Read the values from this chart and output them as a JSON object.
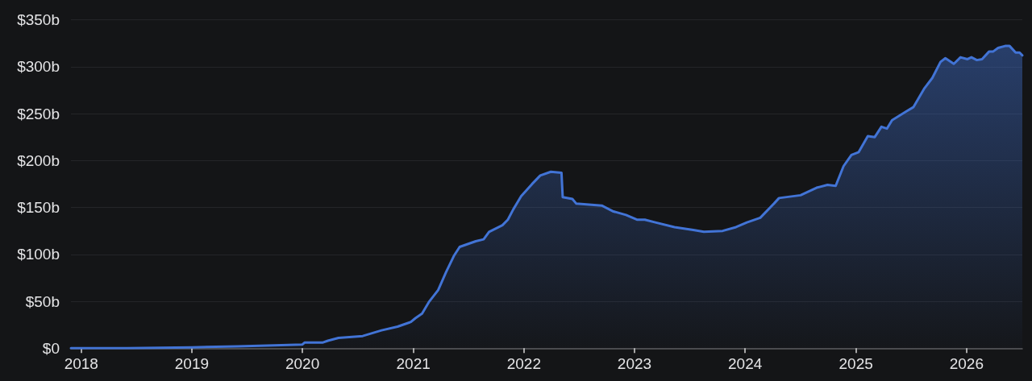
{
  "chart_data": {
    "type": "area",
    "x": [
      "2017-11-28",
      "2018-06-01",
      "2019-01-01",
      "2019-06-01",
      "2019-10-01",
      "2020-01-01",
      "2020-01-08",
      "2020-03-07",
      "2020-03-25",
      "2020-04-29",
      "2020-07-18",
      "2020-09-18",
      "2020-11-10",
      "2020-12-24",
      "2021-01-08",
      "2021-01-30",
      "2021-02-21",
      "2021-03-24",
      "2021-04-19",
      "2021-05-16",
      "2021-06-03",
      "2021-07-26",
      "2021-08-21",
      "2021-09-08",
      "2021-10-22",
      "2021-11-09",
      "2021-11-27",
      "2021-12-23",
      "2022-01-28",
      "2022-02-24",
      "2022-03-31",
      "2022-05-05",
      "2022-05-09",
      "2022-06-10",
      "2022-06-23",
      "2022-09-15",
      "2022-10-21",
      "2022-12-04",
      "2023-01-09",
      "2023-02-04",
      "2023-03-11",
      "2023-05-13",
      "2023-07-14",
      "2023-08-18",
      "2023-10-19",
      "2023-12-02",
      "2024-01-07",
      "2024-02-20",
      "2024-04-05",
      "2024-04-22",
      "2024-07-02",
      "2024-08-24",
      "2024-09-29",
      "2024-10-26",
      "2024-11-21",
      "2024-12-17",
      "2025-01-10",
      "2025-02-09",
      "2025-03-04",
      "2025-03-26",
      "2025-04-13",
      "2025-04-30",
      "2025-06-14",
      "2025-07-10",
      "2025-08-15",
      "2025-09-10",
      "2025-10-07",
      "2025-10-23",
      "2025-11-20",
      "2025-12-12",
      "2026-01-04",
      "2026-01-17",
      "2026-02-04",
      "2026-02-21",
      "2026-03-16",
      "2026-03-29",
      "2026-04-15",
      "2026-05-08",
      "2026-05-23",
      "2026-06-12",
      "2026-06-25",
      "2026-07-04"
    ],
    "series": [
      {
        "color": "#4274d6",
        "values": [
          0,
          0,
          1,
          2,
          3,
          4,
          6,
          6,
          8,
          11,
          13,
          19,
          23,
          28,
          32,
          37,
          49,
          62,
          81,
          99,
          108,
          114,
          116,
          124,
          131,
          137,
          148,
          162,
          175,
          184,
          188,
          187,
          161,
          159,
          154,
          152,
          146,
          142,
          137,
          137,
          134,
          129,
          126,
          124,
          125,
          129,
          134,
          139,
          154,
          160,
          163,
          171,
          174,
          173,
          194,
          206,
          209,
          226,
          225,
          236,
          234,
          243,
          252,
          257,
          277,
          288,
          305,
          309,
          303,
          310,
          308,
          310,
          307,
          308,
          316,
          316,
          320,
          322,
          322,
          315,
          315,
          312
        ]
      }
    ],
    "xlim": [
      "2017-11-28",
      "2026-07-04"
    ],
    "xticks": [
      "2018",
      "2019",
      "2020",
      "2021",
      "2022",
      "2023",
      "2024",
      "2025",
      "2026"
    ],
    "ylim": [
      0,
      350
    ],
    "yticks": [
      {
        "value": 0,
        "label": "$0"
      },
      {
        "value": 50,
        "label": "$50b"
      },
      {
        "value": 100,
        "label": "$100b"
      },
      {
        "value": 150,
        "label": "$150b"
      },
      {
        "value": 200,
        "label": "$200b"
      },
      {
        "value": 250,
        "label": "$250b"
      },
      {
        "value": 300,
        "label": "$300b"
      },
      {
        "value": 350,
        "label": "$350b"
      }
    ],
    "grid": "y",
    "marker": "none",
    "line_style": "solid"
  }
}
